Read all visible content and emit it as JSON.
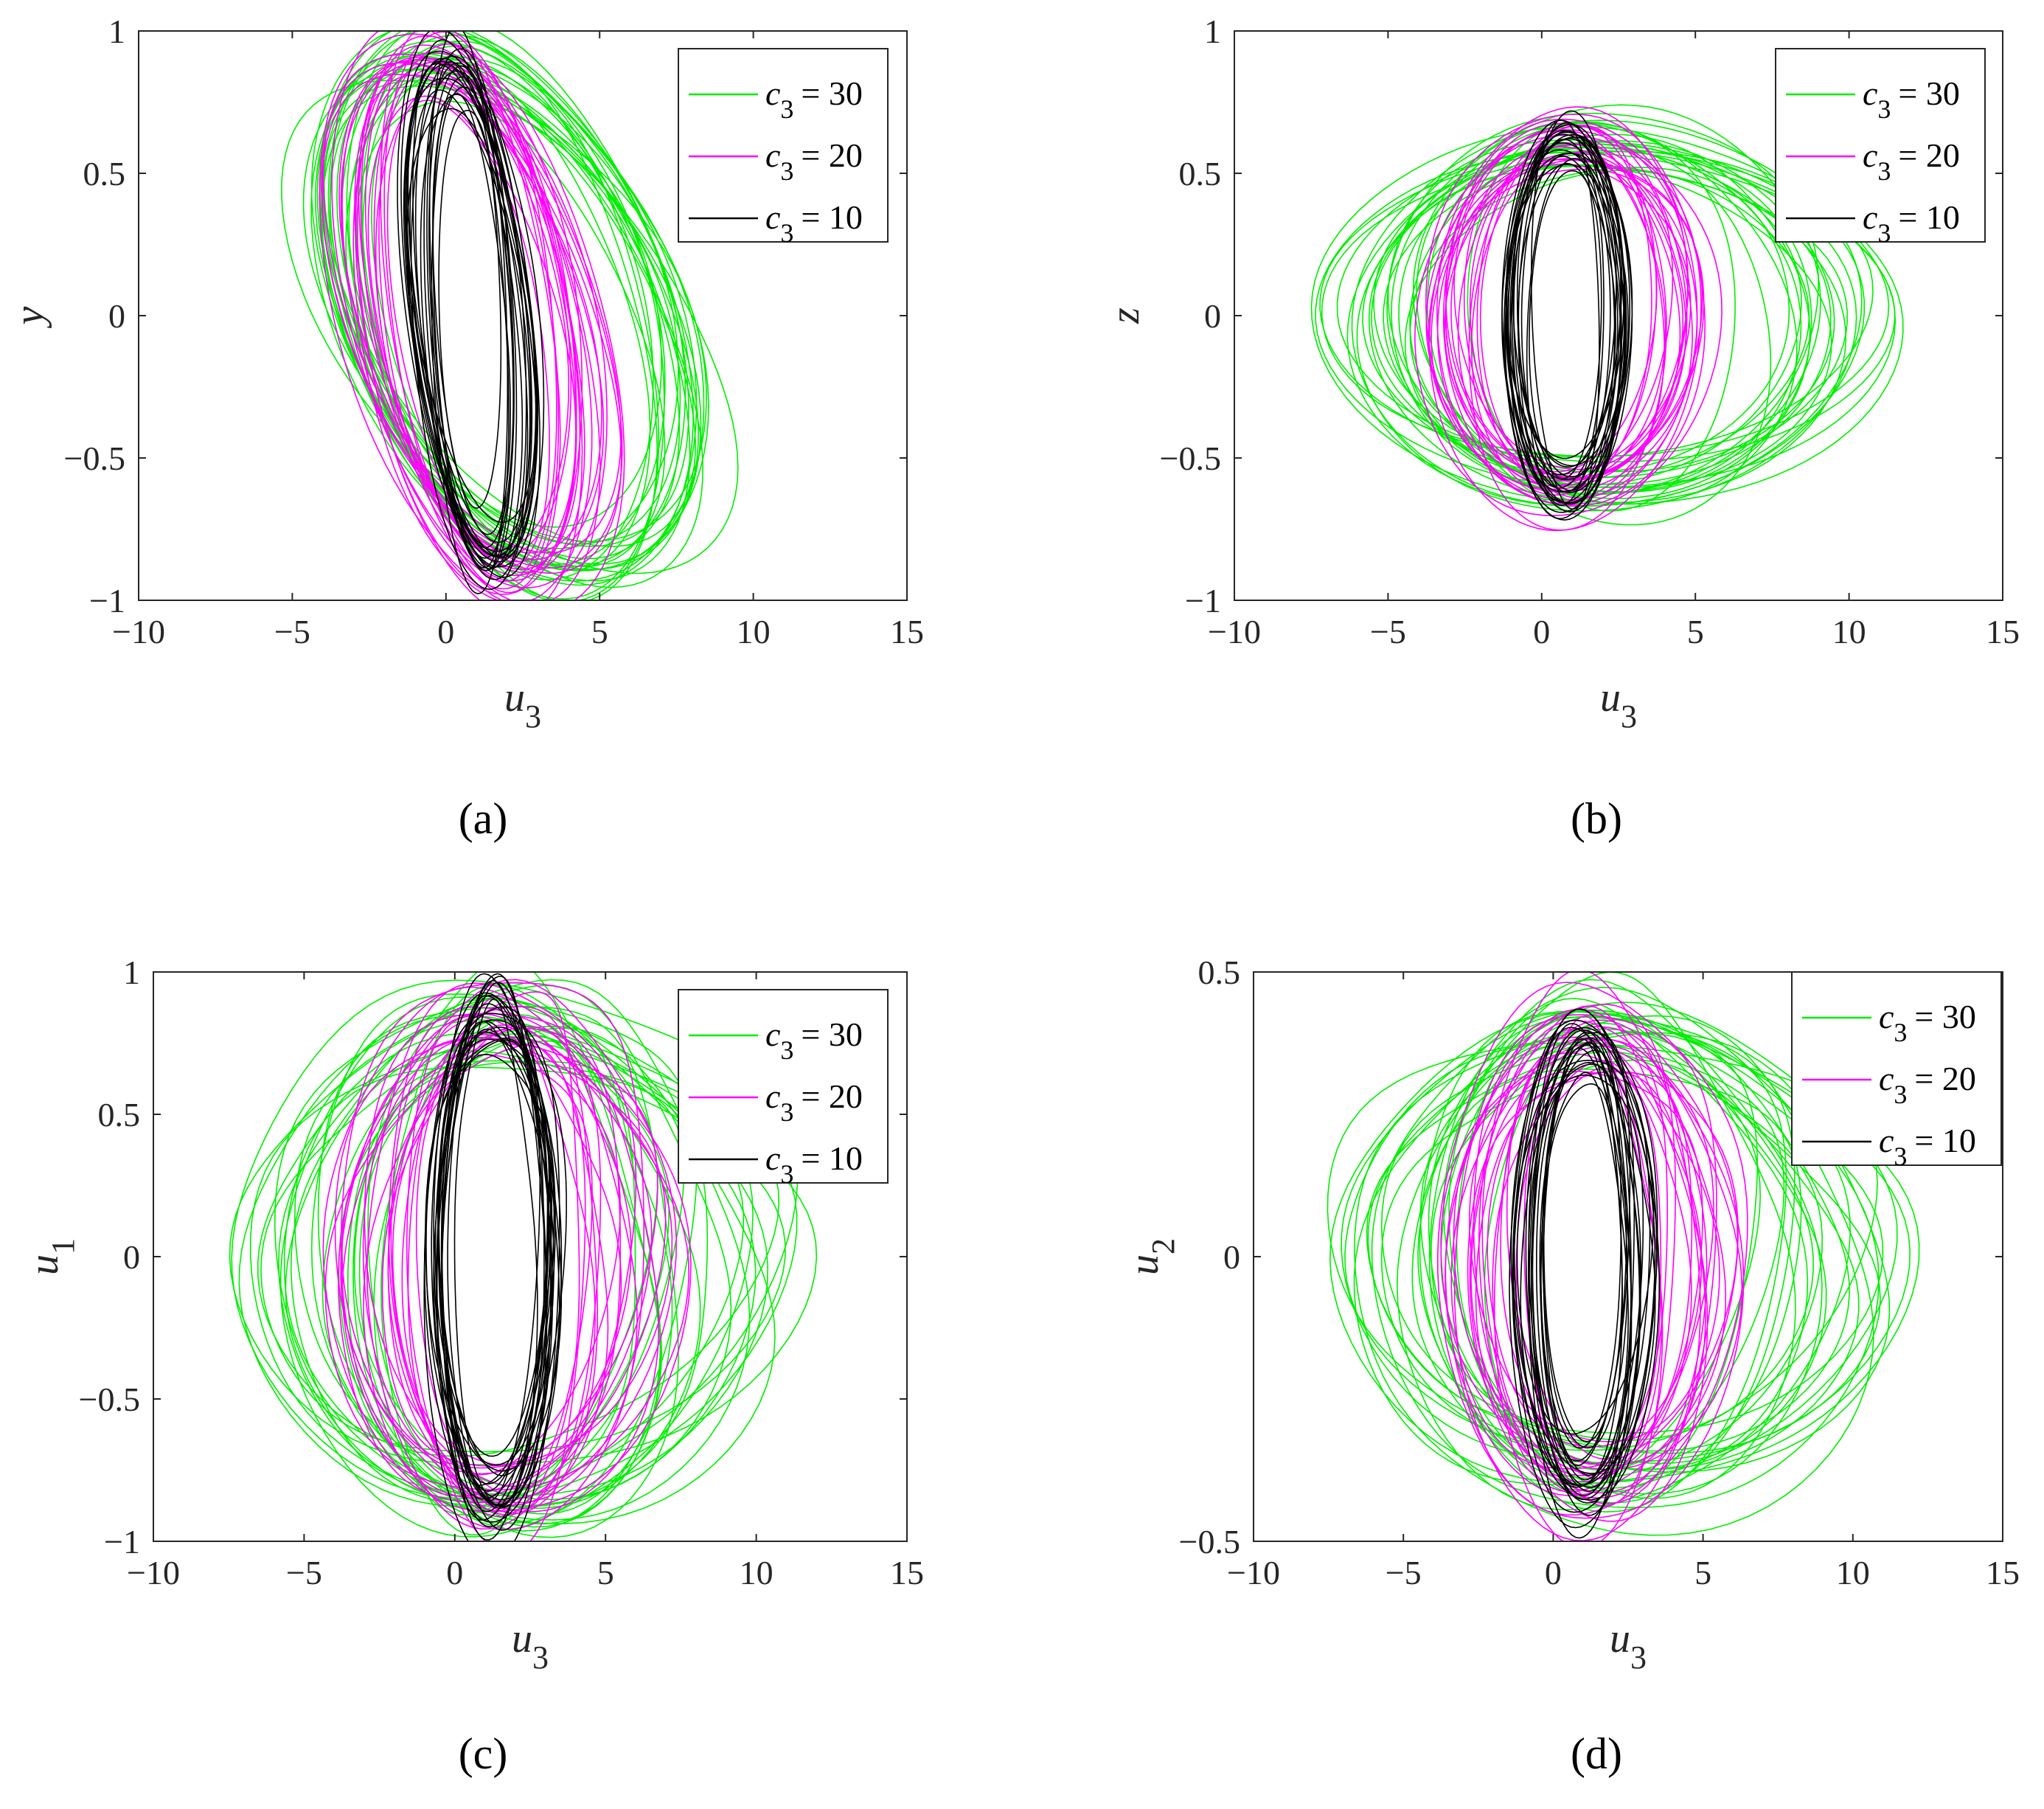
{
  "figure": {
    "series_colors": {
      "c3_30": "#00ee00",
      "c3_20": "#ff00ff",
      "c3_10": "#000000"
    }
  },
  "chart_data": [
    {
      "type": "line",
      "panel": "(a)",
      "xlabel": "u",
      "xlabel_sub": "3",
      "ylabel": "y",
      "ylabel_sub": "",
      "xlim": [
        -10,
        15
      ],
      "ylim": [
        -1,
        1
      ],
      "xticks": [
        -10,
        -5,
        0,
        5,
        10,
        15
      ],
      "yticks": [
        -1,
        -0.5,
        0,
        0.5,
        1
      ],
      "yticklabels": [
        "−1",
        "−0.5",
        "0",
        "0.5",
        "1"
      ],
      "xticklabels": [
        "−10",
        "−5",
        "0",
        "5",
        "10",
        "15"
      ],
      "legend_location": "top-right",
      "series": [
        {
          "name": "c3 = 30",
          "c": "c",
          "sub": "3",
          "val": "= 30",
          "color": "#00ee00",
          "shape": {
            "cx": 2.0,
            "cy": 0.0,
            "a": 9.0,
            "b": 0.93,
            "rot": 0.6,
            "rings": 24
          }
        },
        {
          "name": "c3 = 20",
          "c": "c",
          "sub": "3",
          "val": "= 20",
          "color": "#ff00ff",
          "shape": {
            "cx": 0.8,
            "cy": 0.0,
            "a": 5.4,
            "b": 0.93,
            "rot": 0.55,
            "rings": 22
          }
        },
        {
          "name": "c3 = 10",
          "c": "c",
          "sub": "3",
          "val": "= 10",
          "color": "#000000",
          "shape": {
            "cx": 0.8,
            "cy": 0.0,
            "a": 2.6,
            "b": 0.9,
            "rot": 0.5,
            "rings": 22
          }
        }
      ]
    },
    {
      "type": "line",
      "panel": "(b)",
      "xlabel": "u",
      "xlabel_sub": "3",
      "ylabel": "z",
      "ylabel_sub": "",
      "xlim": [
        -10,
        15
      ],
      "ylim": [
        -1,
        1
      ],
      "xticks": [
        -10,
        -5,
        0,
        5,
        10,
        15
      ],
      "yticks": [
        -1,
        -0.5,
        0,
        0.5,
        1
      ],
      "yticklabels": [
        "−1",
        "−0.5",
        "0",
        "0.5",
        "1"
      ],
      "xticklabels": [
        "−10",
        "−5",
        "0",
        "5",
        "10",
        "15"
      ],
      "legend_location": "top-right",
      "series": [
        {
          "name": "c3 = 30",
          "c": "c",
          "sub": "3",
          "val": "= 30",
          "color": "#00ee00",
          "shape": {
            "cx": 2.0,
            "cy": 0.0,
            "a": 9.3,
            "b": 0.7,
            "rot": 0.0,
            "rings": 24
          }
        },
        {
          "name": "c3 = 20",
          "c": "c",
          "sub": "3",
          "val": "= 20",
          "color": "#ff00ff",
          "shape": {
            "cx": 0.8,
            "cy": 0.0,
            "a": 5.0,
            "b": 0.72,
            "rot": 0.0,
            "rings": 22
          }
        },
        {
          "name": "c3 = 10",
          "c": "c",
          "sub": "3",
          "val": "= 10",
          "color": "#000000",
          "shape": {
            "cx": 0.8,
            "cy": 0.0,
            "a": 2.1,
            "b": 0.69,
            "rot": 0.0,
            "rings": 22
          }
        }
      ]
    },
    {
      "type": "line",
      "panel": "(c)",
      "xlabel": "u",
      "xlabel_sub": "3",
      "ylabel": "u",
      "ylabel_sub": "1",
      "xlim": [
        -10,
        15
      ],
      "ylim": [
        -1,
        1
      ],
      "xticks": [
        -10,
        -5,
        0,
        5,
        10,
        15
      ],
      "yticks": [
        -1,
        -0.5,
        0,
        0.5,
        1
      ],
      "yticklabels": [
        "−1",
        "−0.5",
        "0",
        "0.5",
        "1"
      ],
      "xticklabels": [
        "−10",
        "−5",
        "0",
        "5",
        "10",
        "15"
      ],
      "legend_location": "top-right",
      "series": [
        {
          "name": "c3 = 30",
          "c": "c",
          "sub": "3",
          "val": "= 30",
          "color": "#00ee00",
          "shape": {
            "cx": 1.8,
            "cy": 0.0,
            "a": 9.0,
            "b": 0.97,
            "rot": 0.0,
            "rings": 24,
            "wobble": 0.35
          }
        },
        {
          "name": "c3 = 20",
          "c": "c",
          "sub": "3",
          "val": "= 20",
          "color": "#ff00ff",
          "shape": {
            "cx": 1.5,
            "cy": 0.0,
            "a": 5.6,
            "b": 0.97,
            "rot": 0.0,
            "rings": 22,
            "wobble": 0.3
          }
        },
        {
          "name": "c3 = 10",
          "c": "c",
          "sub": "3",
          "val": "= 10",
          "color": "#000000",
          "shape": {
            "cx": 1.3,
            "cy": 0.0,
            "a": 2.4,
            "b": 0.97,
            "rot": 0.0,
            "rings": 22,
            "wobble": 0.25
          }
        }
      ]
    },
    {
      "type": "line",
      "panel": "(d)",
      "xlabel": "u",
      "xlabel_sub": "3",
      "ylabel": "u",
      "ylabel_sub": "2",
      "xlim": [
        -10,
        15
      ],
      "ylim": [
        -0.5,
        0.5
      ],
      "xticks": [
        -10,
        -5,
        0,
        5,
        10,
        15
      ],
      "yticks": [
        -0.5,
        0,
        0.5
      ],
      "yticklabels": [
        "−0.5",
        "0",
        "0.5"
      ],
      "xticklabels": [
        "−10",
        "−5",
        "0",
        "5",
        "10",
        "15"
      ],
      "legend_location": "top-right",
      "series": [
        {
          "name": "c3 = 30",
          "c": "c",
          "sub": "3",
          "val": "= 30",
          "color": "#00ee00",
          "shape": {
            "cx": 2.0,
            "cy": 0.0,
            "a": 9.3,
            "b": 0.46,
            "rot": 0.0,
            "rings": 24,
            "wobble": 0.3
          }
        },
        {
          "name": "c3 = 20",
          "c": "c",
          "sub": "3",
          "val": "= 20",
          "color": "#ff00ff",
          "shape": {
            "cx": 1.2,
            "cy": 0.0,
            "a": 4.8,
            "b": 0.47,
            "rot": 0.0,
            "rings": 22,
            "wobble": 0.25
          }
        },
        {
          "name": "c3 = 10",
          "c": "c",
          "sub": "3",
          "val": "= 10",
          "color": "#000000",
          "shape": {
            "cx": 1.0,
            "cy": 0.0,
            "a": 2.4,
            "b": 0.46,
            "rot": 0.0,
            "rings": 22,
            "wobble": 0.2
          }
        }
      ]
    }
  ]
}
